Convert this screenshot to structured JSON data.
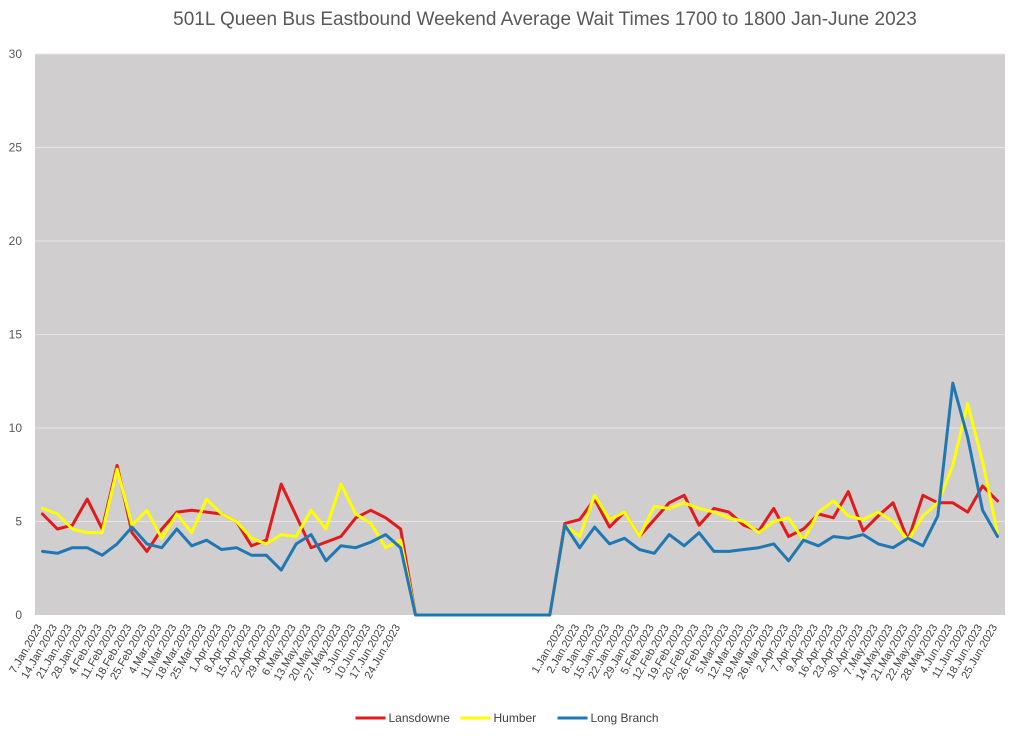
{
  "chart_data": {
    "type": "line",
    "title": "501L Queen Bus Eastbound Weekend Average Wait Times 1700 to 1800 Jan-June 2023",
    "xlabel": "",
    "ylabel": "",
    "ylim": [
      0,
      30
    ],
    "yticks": [
      0,
      5,
      10,
      15,
      20,
      25,
      30
    ],
    "grid": true,
    "plot_background": "#d0cece",
    "legend_position": "bottom",
    "categories": [
      "7.Jan.2023",
      "14.Jan.2023",
      "21.Jan.2023",
      "28.Jan.2023",
      "4.Feb.2023",
      "11.Feb.2023",
      "18.Feb.2023",
      "25.Feb.2023",
      "4.Mar.2023",
      "11.Mar.2023",
      "18.Mar.2023",
      "25.Mar.2023",
      "1.Apr.2023",
      "8.Apr.2023",
      "15.Apr.2023",
      "22.Apr.2023",
      "29.Apr.2023",
      "6.May.2023",
      "13.May.2023",
      "20.May.2023",
      "27.May.2023",
      "3.Jun.2023",
      "10.Jun.2023",
      "17.Jun.2023",
      "24.Jun.2023",
      "",
      "",
      "",
      "",
      "",
      "",
      "",
      "",
      "",
      "",
      "1.Jan.2023",
      "2.Jan.2023",
      "8.Jan.2023",
      "15.Jan.2023",
      "22.Jan.2023",
      "29.Jan.2023",
      "5.Feb.2023",
      "12.Feb.2023",
      "19.Feb.2023",
      "20.Feb.2023",
      "26.Feb.2023",
      "5.Mar.2023",
      "12.Mar.2023",
      "19.Mar.2023",
      "26.Mar.2023",
      "2.Apr.2023",
      "7.Apr.2023",
      "9.Apr.2023",
      "16.Apr.2023",
      "23.Apr.2023",
      "30.Apr.2023",
      "7.May.2023",
      "14.May.2023",
      "21.May.2023",
      "22.May.2023",
      "28.May.2023",
      "4.Jun.2023",
      "11.Jun.2023",
      "18.Jun.2023",
      "25.Jun.2023"
    ],
    "series": [
      {
        "name": "Lansdowne",
        "color": "#e31a1c",
        "values": [
          5.4,
          4.6,
          4.8,
          6.2,
          4.6,
          8.0,
          4.4,
          3.4,
          4.6,
          5.5,
          5.6,
          5.5,
          5.4,
          5.0,
          3.7,
          4.0,
          7.0,
          5.3,
          3.6,
          3.9,
          4.2,
          5.2,
          5.6,
          5.2,
          4.6,
          0,
          0,
          0,
          0,
          0,
          0,
          0,
          0,
          0,
          0,
          4.9,
          5.1,
          6.2,
          4.7,
          5.5,
          4.2,
          5.1,
          6.0,
          6.4,
          4.8,
          5.7,
          5.5,
          4.8,
          4.5,
          5.7,
          4.2,
          4.6,
          5.4,
          5.2,
          6.6,
          4.5,
          5.3,
          6.0,
          4.0,
          6.4,
          6.0,
          6.0,
          5.5,
          6.9,
          6.1
        ]
      },
      {
        "name": "Humber",
        "color": "#ffff00",
        "values": [
          5.7,
          5.4,
          4.6,
          4.4,
          4.4,
          7.8,
          4.8,
          5.6,
          4.1,
          5.4,
          4.4,
          6.2,
          5.4,
          5.0,
          4.1,
          3.8,
          4.3,
          4.2,
          5.6,
          4.6,
          7.0,
          5.4,
          4.9,
          3.6,
          4.0,
          0,
          0,
          0,
          0,
          0,
          0,
          0,
          0,
          0,
          0,
          4.8,
          4.2,
          6.4,
          5.1,
          5.5,
          4.2,
          5.8,
          5.7,
          6.0,
          5.7,
          5.5,
          5.2,
          5.0,
          4.4,
          5.0,
          5.2,
          4.0,
          5.5,
          6.1,
          5.3,
          5.1,
          5.5,
          5.0,
          4.0,
          5.3,
          6.0,
          8.0,
          11.3,
          8.2,
          4.4
        ]
      },
      {
        "name": "Long Branch",
        "color": "#1f78b4",
        "values": [
          3.4,
          3.3,
          3.6,
          3.6,
          3.2,
          3.8,
          4.7,
          3.8,
          3.6,
          4.6,
          3.7,
          4.0,
          3.5,
          3.6,
          3.2,
          3.2,
          2.4,
          3.8,
          4.3,
          2.9,
          3.7,
          3.6,
          3.9,
          4.3,
          3.6,
          0,
          0,
          0,
          0,
          0,
          0,
          0,
          0,
          0,
          0,
          4.8,
          3.6,
          4.7,
          3.8,
          4.1,
          3.5,
          3.3,
          4.3,
          3.7,
          4.4,
          3.4,
          3.4,
          3.5,
          3.6,
          3.8,
          2.9,
          4.0,
          3.7,
          4.2,
          4.1,
          4.3,
          3.8,
          3.6,
          4.1,
          3.7,
          5.3,
          12.4,
          9.5,
          5.6,
          4.2
        ]
      }
    ]
  }
}
